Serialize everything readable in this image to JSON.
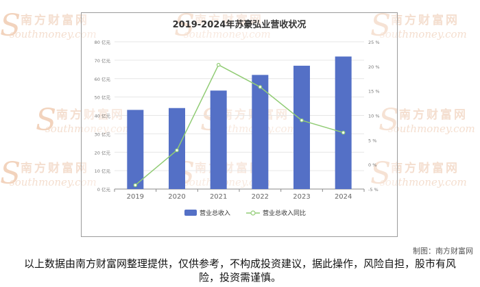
{
  "watermark": {
    "cn": "南方财富网",
    "en": "southmoney.com",
    "s": "S"
  },
  "credit": "制图：南方财富网",
  "disclaimer": "以上数据由南方财富网整理提供，仅供参考，不构成投资建议，据此操作，风险自担，股市有风险，投资需谨慎。",
  "colors": {
    "bar": "#5470c6",
    "line": "#91cc75",
    "grid": "#e6e6e6",
    "axis": "#888888"
  },
  "chart_data": {
    "type": "bar",
    "title": "2019-2024年苏豪弘业营收状况",
    "categories": [
      "2019",
      "2020",
      "2021",
      "2022",
      "2023",
      "2024"
    ],
    "series": [
      {
        "name": "营业总收入",
        "type": "bar",
        "axis": "left",
        "values": [
          43,
          44,
          53.5,
          62,
          67,
          72
        ]
      },
      {
        "name": "营业总收入同比",
        "type": "line",
        "axis": "right",
        "values": [
          -4.2,
          2.9,
          20.3,
          15.8,
          9.0,
          6.5
        ]
      }
    ],
    "y_left": {
      "ylim": [
        0,
        80
      ],
      "ticks": [
        0,
        10,
        20,
        30,
        40,
        50,
        60,
        70,
        80
      ],
      "tick_labels": [
        "0 亿元",
        "10 亿元",
        "20 亿元",
        "30 亿元",
        "40 亿元",
        "50 亿元",
        "60 亿元",
        "70 亿元",
        "80 亿元"
      ]
    },
    "y_right": {
      "ylim": [
        -5,
        25
      ],
      "ticks": [
        -5,
        0,
        5,
        10,
        15,
        20,
        25
      ],
      "tick_labels": [
        "-5 %",
        "0 %",
        "5 %",
        "10 %",
        "15 %",
        "20 %",
        "25 %"
      ]
    },
    "grid": true,
    "legend_position": "bottom"
  }
}
